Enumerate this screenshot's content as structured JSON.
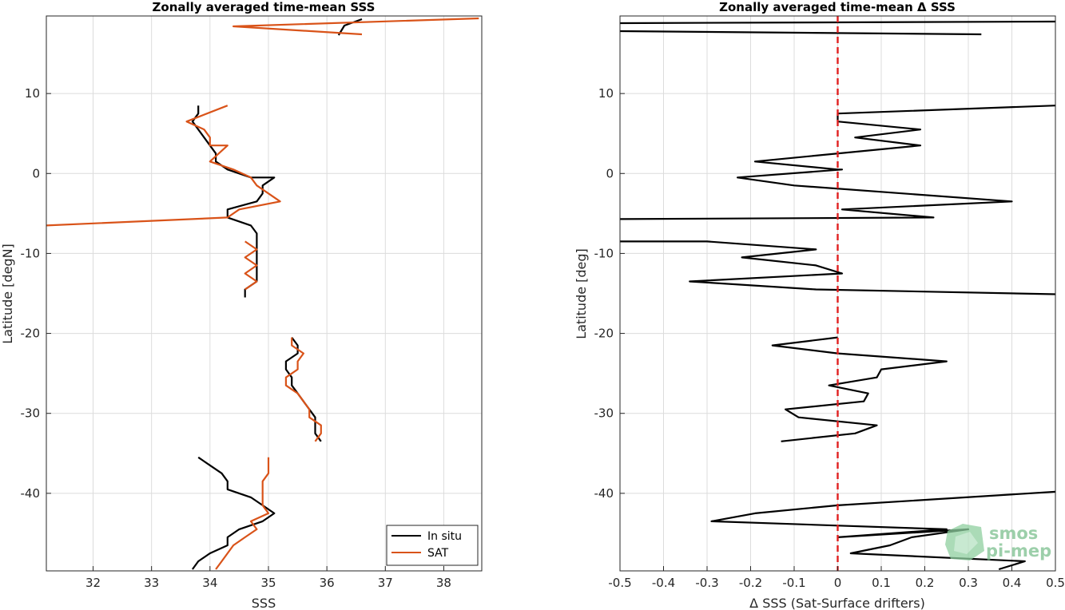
{
  "chart_data": [
    {
      "type": "line",
      "title": "Zonally averaged time-mean SSS",
      "xlabel": "SSS",
      "ylabel": "Latitude [degN]",
      "xlim": [
        31.2,
        38.65
      ],
      "ylim": [
        -49.7,
        19.7
      ],
      "xticks": [
        32,
        33,
        34,
        35,
        36,
        37,
        38
      ],
      "yticks": [
        -40,
        -30,
        -20,
        -10,
        0,
        10
      ],
      "grid": true,
      "legend": "bottom-right",
      "series": [
        {
          "name": "In situ",
          "color": "#000000",
          "segments": [
            [
              [
                36.6,
                19.3
              ],
              [
                36.3,
                18.5
              ],
              [
                36.2,
                17.3
              ]
            ],
            [
              [
                33.8,
                8.5
              ],
              [
                33.8,
                7.5
              ],
              [
                33.7,
                6.5
              ],
              [
                33.8,
                5.5
              ],
              [
                33.9,
                4.5
              ],
              [
                34.0,
                3.5
              ],
              [
                34.1,
                2.5
              ],
              [
                34.1,
                1.5
              ],
              [
                34.3,
                0.5
              ],
              [
                34.7,
                -0.5
              ],
              [
                35.1,
                -0.5
              ],
              [
                34.9,
                -1.5
              ],
              [
                34.9,
                -2.5
              ],
              [
                34.8,
                -3.5
              ],
              [
                34.3,
                -4.5
              ],
              [
                34.3,
                -5.5
              ],
              [
                34.7,
                -6.5
              ],
              [
                34.8,
                -7.5
              ],
              [
                34.8,
                -8.5
              ],
              [
                34.8,
                -9.5
              ],
              [
                34.8,
                -10.5
              ],
              [
                34.8,
                -11.5
              ],
              [
                34.8,
                -12.5
              ],
              [
                34.8,
                -13.5
              ],
              [
                34.6,
                -14.5
              ],
              [
                34.6,
                -15.5
              ]
            ],
            [
              [
                35.4,
                -20.5
              ],
              [
                35.5,
                -21.5
              ],
              [
                35.5,
                -22.5
              ],
              [
                35.3,
                -23.5
              ],
              [
                35.3,
                -24.5
              ],
              [
                35.4,
                -25.5
              ],
              [
                35.4,
                -26.5
              ],
              [
                35.5,
                -27.5
              ],
              [
                35.6,
                -28.5
              ],
              [
                35.7,
                -29.5
              ],
              [
                35.8,
                -30.5
              ],
              [
                35.8,
                -31.5
              ],
              [
                35.8,
                -32.5
              ],
              [
                35.9,
                -33.5
              ]
            ],
            [
              [
                33.8,
                -35.5
              ],
              [
                34.0,
                -36.5
              ],
              [
                34.2,
                -37.5
              ],
              [
                34.3,
                -38.5
              ],
              [
                34.3,
                -39.5
              ],
              [
                34.7,
                -40.5
              ],
              [
                34.9,
                -41.5
              ],
              [
                35.1,
                -42.5
              ],
              [
                34.9,
                -43.5
              ],
              [
                34.5,
                -44.5
              ],
              [
                34.3,
                -45.5
              ],
              [
                34.3,
                -46.5
              ],
              [
                34.0,
                -47.5
              ],
              [
                33.8,
                -48.5
              ],
              [
                33.7,
                -49.5
              ]
            ]
          ]
        },
        {
          "name": "SAT",
          "color": "#d95319",
          "segments": [
            [
              [
                38.6,
                19.4
              ],
              [
                34.4,
                18.4
              ],
              [
                36.6,
                17.4
              ]
            ],
            [
              [
                34.3,
                8.5
              ],
              [
                33.6,
                6.5
              ],
              [
                33.9,
                5.5
              ],
              [
                34.0,
                4.5
              ],
              [
                34.0,
                3.5
              ],
              [
                34.3,
                3.5
              ],
              [
                34.0,
                1.5
              ],
              [
                34.4,
                0.5
              ],
              [
                34.7,
                -0.5
              ],
              [
                34.8,
                -1.5
              ],
              [
                35.0,
                -2.5
              ],
              [
                35.2,
                -3.5
              ],
              [
                34.5,
                -4.5
              ],
              [
                34.3,
                -5.5
              ],
              [
                31.2,
                -6.5
              ]
            ],
            [
              [
                34.6,
                -8.5
              ],
              [
                34.8,
                -9.5
              ],
              [
                34.6,
                -10.5
              ],
              [
                34.8,
                -11.5
              ],
              [
                34.6,
                -12.5
              ],
              [
                34.8,
                -13.5
              ],
              [
                34.6,
                -14.5
              ]
            ],
            [
              [
                35.4,
                -20.5
              ],
              [
                35.4,
                -21.5
              ],
              [
                35.6,
                -22.5
              ],
              [
                35.5,
                -23.5
              ],
              [
                35.5,
                -24.5
              ],
              [
                35.3,
                -25.5
              ],
              [
                35.3,
                -26.5
              ],
              [
                35.5,
                -27.5
              ],
              [
                35.6,
                -28.5
              ],
              [
                35.7,
                -29.5
              ],
              [
                35.7,
                -30.5
              ],
              [
                35.9,
                -31.5
              ],
              [
                35.9,
                -32.5
              ],
              [
                35.8,
                -33.5
              ]
            ],
            [
              [
                35.0,
                -35.5
              ],
              [
                35.0,
                -36.5
              ],
              [
                35.0,
                -37.5
              ],
              [
                34.9,
                -38.5
              ],
              [
                34.9,
                -39.5
              ],
              [
                34.9,
                -40.5
              ],
              [
                34.9,
                -41.5
              ],
              [
                35.0,
                -42.5
              ],
              [
                34.7,
                -43.5
              ],
              [
                34.8,
                -44.5
              ],
              [
                34.6,
                -45.5
              ],
              [
                34.4,
                -46.5
              ],
              [
                34.3,
                -47.5
              ],
              [
                34.2,
                -48.5
              ],
              [
                34.1,
                -49.5
              ]
            ]
          ]
        }
      ]
    },
    {
      "type": "line",
      "title": "Zonally averaged time-mean Δ SSS",
      "xlabel": "Δ SSS (Sat-Surface drifters)",
      "ylabel": "Latitude [deg]",
      "xlim": [
        -0.5,
        0.5
      ],
      "ylim": [
        -49.7,
        19.7
      ],
      "xticks": [
        -0.5,
        -0.4,
        -0.3,
        -0.2,
        -0.1,
        0,
        0.1,
        0.2,
        0.3,
        0.4,
        0.5
      ],
      "yticks": [
        -40,
        -30,
        -20,
        -10,
        0,
        10
      ],
      "grid": true,
      "reference_line": {
        "x": 0,
        "color": "#e02020",
        "style": "dashed"
      },
      "series": [
        {
          "name": "",
          "color": "#000000",
          "segments": [
            [
              [
                -0.5,
                18.8
              ],
              [
                0.5,
                19.0
              ]
            ],
            [
              [
                -0.5,
                17.8
              ],
              [
                0.33,
                17.4
              ]
            ],
            [
              [
                0.5,
                8.5
              ],
              [
                0.0,
                7.5
              ],
              [
                0.0,
                6.5
              ],
              [
                0.19,
                5.5
              ],
              [
                0.04,
                4.5
              ],
              [
                0.19,
                3.5
              ],
              [
                -0.19,
                1.5
              ],
              [
                0.0,
                0.5
              ],
              [
                0.01,
                0.5
              ],
              [
                -0.23,
                -0.5
              ],
              [
                -0.1,
                -1.5
              ],
              [
                0.4,
                -3.5
              ],
              [
                0.01,
                -4.5
              ],
              [
                0.22,
                -5.5
              ],
              [
                -0.5,
                -5.7
              ]
            ],
            [
              [
                -0.5,
                -8.5
              ],
              [
                -0.3,
                -8.5
              ],
              [
                -0.05,
                -9.5
              ],
              [
                -0.22,
                -10.5
              ],
              [
                -0.05,
                -11.5
              ],
              [
                0.01,
                -12.5
              ],
              [
                -0.34,
                -13.5
              ],
              [
                -0.05,
                -14.5
              ],
              [
                0.5,
                -15.1
              ]
            ],
            [
              [
                0.0,
                -20.5
              ],
              [
                -0.15,
                -21.5
              ],
              [
                0.0,
                -22.5
              ],
              [
                0.25,
                -23.5
              ],
              [
                0.1,
                -24.5
              ],
              [
                0.09,
                -25.5
              ],
              [
                -0.02,
                -26.5
              ],
              [
                0.07,
                -27.5
              ],
              [
                0.06,
                -28.5
              ],
              [
                -0.12,
                -29.5
              ],
              [
                -0.09,
                -30.5
              ],
              [
                0.09,
                -31.5
              ],
              [
                0.04,
                -32.5
              ],
              [
                -0.13,
                -33.5
              ]
            ],
            [
              [
                0.5,
                -39.8
              ],
              [
                0.0,
                -41.5
              ],
              [
                -0.19,
                -42.5
              ],
              [
                -0.29,
                -43.5
              ],
              [
                0.25,
                -44.5
              ],
              [
                0.0,
                -45.5
              ],
              [
                0.3,
                -44.5
              ],
              [
                0.17,
                -45.5
              ],
              [
                0.12,
                -46.5
              ],
              [
                0.03,
                -47.5
              ],
              [
                0.43,
                -48.5
              ],
              [
                0.37,
                -49.5
              ]
            ]
          ]
        }
      ]
    }
  ],
  "legend_entries": [
    "In situ",
    "SAT"
  ],
  "watermark": {
    "line1": "smos",
    "line2": "pi-mep",
    "color": "#7cc08e"
  }
}
